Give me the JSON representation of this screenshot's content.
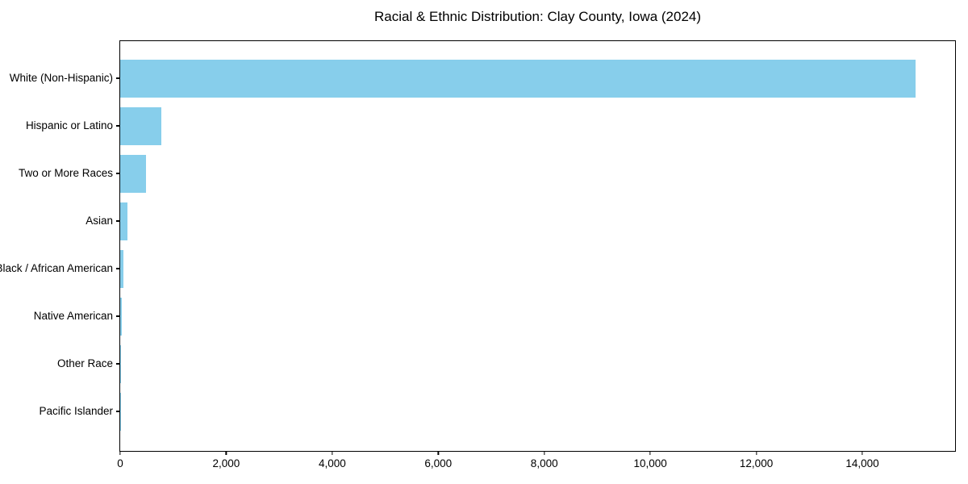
{
  "chart_data": {
    "type": "bar",
    "orientation": "horizontal",
    "title": "Racial & Ethnic Distribution: Clay County, Iowa (2024)",
    "categories": [
      "White (Non-Hispanic)",
      "Hispanic or Latino",
      "Two or More Races",
      "Asian",
      "Black / African American",
      "Native American",
      "Other Race",
      "Pacific Islander"
    ],
    "values": [
      15000,
      775,
      490,
      130,
      60,
      25,
      15,
      4
    ],
    "xlabel": "",
    "ylabel": "",
    "xlim": [
      0,
      15750
    ],
    "x_ticks": [
      0,
      2000,
      4000,
      6000,
      8000,
      10000,
      12000,
      14000
    ],
    "x_tick_labels": [
      "0",
      "2,000",
      "4,000",
      "6,000",
      "8,000",
      "10,000",
      "12,000",
      "14,000"
    ],
    "bar_color": "#87CEEB",
    "axis_color": "#000000",
    "background_color": "#FFFFFF",
    "grid": false,
    "legend": "none"
  }
}
